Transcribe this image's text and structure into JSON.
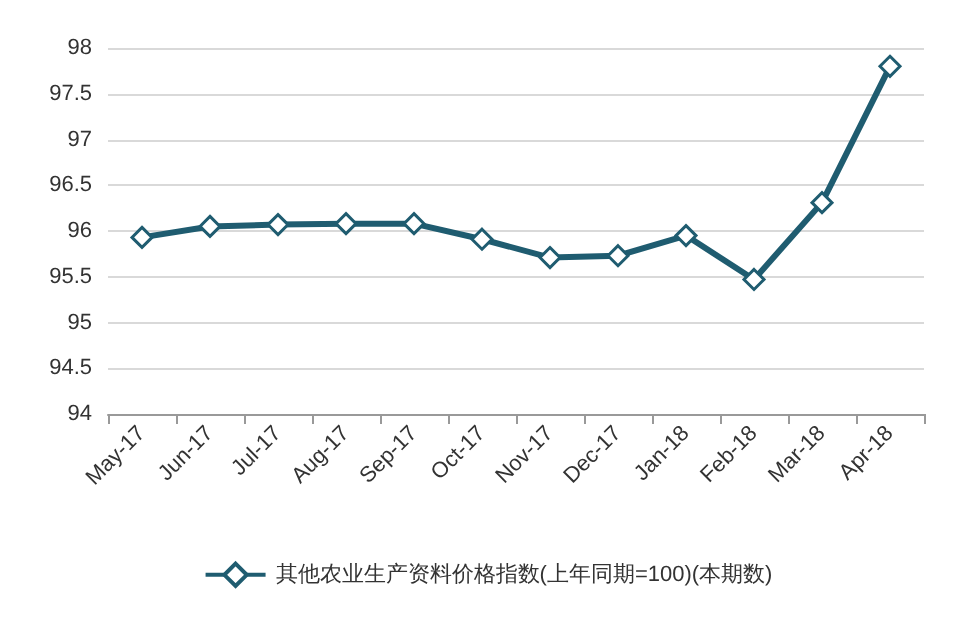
{
  "chart_data": {
    "type": "line",
    "categories": [
      "May-17",
      "Jun-17",
      "Jul-17",
      "Aug-17",
      "Sep-17",
      "Oct-17",
      "Nov-17",
      "Dec-17",
      "Jan-18",
      "Feb-18",
      "Mar-18",
      "Apr-18"
    ],
    "series": [
      {
        "name": "其他农业生产资料价格指数(上年同期=100)(本期数)",
        "color": "#1f5c70",
        "values": [
          95.93,
          96.05,
          96.07,
          96.08,
          96.08,
          95.91,
          95.71,
          95.73,
          95.95,
          95.47,
          96.31,
          97.8
        ]
      }
    ],
    "ylim": [
      94,
      98
    ],
    "yticks": [
      94,
      94.5,
      95,
      95.5,
      96,
      96.5,
      97,
      97.5,
      98
    ],
    "grid": "y",
    "legend": "bottom",
    "marker": "diamond",
    "line_style": "solid"
  }
}
